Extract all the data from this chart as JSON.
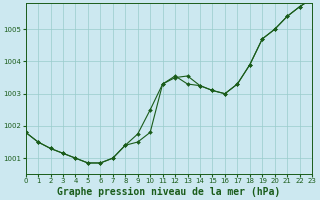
{
  "title": "Graphe pression niveau de la mer (hPa)",
  "background_color": "#cce8f0",
  "grid_color": "#99cccc",
  "line_color": "#1a5c1a",
  "x_min": 0,
  "x_max": 23,
  "y_min": 1000.5,
  "y_max": 1005.8,
  "yticks": [
    1001,
    1002,
    1003,
    1004,
    1005
  ],
  "xticks": [
    0,
    1,
    2,
    3,
    4,
    5,
    6,
    7,
    8,
    9,
    10,
    11,
    12,
    13,
    14,
    15,
    16,
    17,
    18,
    19,
    20,
    21,
    22,
    23
  ],
  "series1_x": [
    0,
    1,
    2,
    3,
    4,
    5,
    6,
    7,
    8,
    9,
    10,
    11,
    12,
    13,
    14,
    15,
    16,
    17,
    18,
    19,
    20,
    21,
    22,
    23
  ],
  "series1_y": [
    1001.8,
    1001.5,
    1001.3,
    1001.15,
    1001.0,
    1000.85,
    1000.85,
    1001.0,
    1001.4,
    1001.75,
    1002.5,
    1003.3,
    1003.5,
    1003.55,
    1003.25,
    1003.1,
    1003.0,
    1003.3,
    1003.9,
    1004.7,
    1005.0,
    1005.4,
    1005.7,
    1005.95
  ],
  "series2_x": [
    0,
    1,
    2,
    3,
    4,
    5,
    6,
    7,
    8,
    9,
    10,
    11,
    12,
    13,
    14,
    15,
    16,
    17,
    18,
    19,
    20,
    21,
    22,
    23
  ],
  "series2_y": [
    1001.8,
    1001.5,
    1001.3,
    1001.15,
    1001.0,
    1000.85,
    1000.85,
    1001.0,
    1001.4,
    1001.5,
    1001.8,
    1003.3,
    1003.55,
    1003.3,
    1003.25,
    1003.1,
    1003.0,
    1003.3,
    1003.9,
    1004.7,
    1005.0,
    1005.4,
    1005.7,
    1005.95
  ],
  "title_fontsize": 7,
  "tick_fontsize": 5
}
